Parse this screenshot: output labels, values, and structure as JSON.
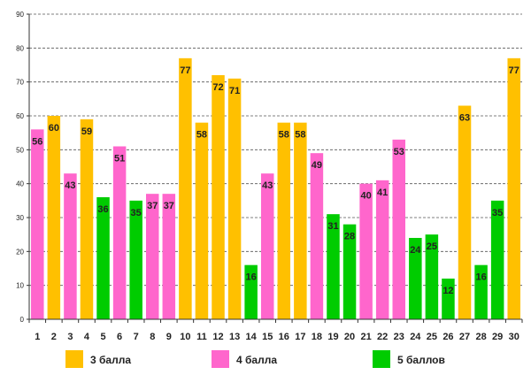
{
  "chart_data": {
    "type": "bar",
    "title": "",
    "xlabel": "",
    "ylabel": "",
    "ylim": [
      0,
      90
    ],
    "yticks": [
      0,
      10,
      20,
      30,
      40,
      50,
      60,
      70,
      80,
      90
    ],
    "grid": true,
    "categories": [
      "1",
      "2",
      "3",
      "4",
      "5",
      "6",
      "7",
      "8",
      "9",
      "10",
      "11",
      "12",
      "13",
      "14",
      "15",
      "16",
      "17",
      "18",
      "19",
      "20",
      "21",
      "22",
      "23",
      "24",
      "25",
      "26",
      "27",
      "28",
      "29",
      "30"
    ],
    "values": [
      56,
      60,
      43,
      59,
      36,
      51,
      35,
      37,
      37,
      77,
      58,
      72,
      71,
      16,
      43,
      58,
      58,
      49,
      31,
      28,
      40,
      41,
      53,
      24,
      25,
      12,
      63,
      16,
      35,
      77
    ],
    "groups": [
      {
        "key": "g3",
        "name": "3 балла",
        "color": "#FFC000"
      },
      {
        "key": "g4",
        "name": "4 балла",
        "color": "#FF66CC"
      },
      {
        "key": "g5",
        "name": "5 баллов",
        "color": "#00CC00"
      }
    ],
    "bar_groups": [
      "g4",
      "g3",
      "g4",
      "g3",
      "g5",
      "g4",
      "g5",
      "g4",
      "g4",
      "g3",
      "g3",
      "g3",
      "g3",
      "g5",
      "g4",
      "g3",
      "g3",
      "g4",
      "g5",
      "g5",
      "g4",
      "g4",
      "g4",
      "g5",
      "g5",
      "g5",
      "g3",
      "g5",
      "g5",
      "g3"
    ],
    "legend_position": "bottom"
  }
}
